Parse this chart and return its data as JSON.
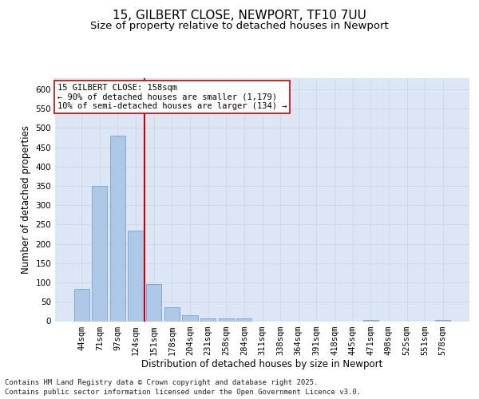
{
  "title_line1": "15, GILBERT CLOSE, NEWPORT, TF10 7UU",
  "title_line2": "Size of property relative to detached houses in Newport",
  "xlabel": "Distribution of detached houses by size in Newport",
  "ylabel": "Number of detached properties",
  "categories": [
    "44sqm",
    "71sqm",
    "97sqm",
    "124sqm",
    "151sqm",
    "178sqm",
    "204sqm",
    "231sqm",
    "258sqm",
    "284sqm",
    "311sqm",
    "338sqm",
    "364sqm",
    "391sqm",
    "418sqm",
    "445sqm",
    "471sqm",
    "498sqm",
    "525sqm",
    "551sqm",
    "578sqm"
  ],
  "values": [
    84,
    351,
    480,
    235,
    96,
    36,
    16,
    8,
    8,
    8,
    0,
    0,
    0,
    0,
    0,
    0,
    4,
    0,
    0,
    0,
    4
  ],
  "bar_color": "#adc8e6",
  "bar_edge_color": "#6699cc",
  "grid_color": "#cdd8ee",
  "background_color": "#dde6f5",
  "vline_x_index": 3.5,
  "vline_color": "#cc0000",
  "annotation_line1": "15 GILBERT CLOSE: 158sqm",
  "annotation_line2": "← 90% of detached houses are smaller (1,179)",
  "annotation_line3": "10% of semi-detached houses are larger (134) →",
  "ylim": [
    0,
    630
  ],
  "yticks": [
    0,
    50,
    100,
    150,
    200,
    250,
    300,
    350,
    400,
    450,
    500,
    550,
    600
  ],
  "footer_line1": "Contains HM Land Registry data © Crown copyright and database right 2025.",
  "footer_line2": "Contains public sector information licensed under the Open Government Licence v3.0.",
  "title_fontsize": 11,
  "subtitle_fontsize": 9.5,
  "axis_label_fontsize": 8.5,
  "tick_fontsize": 7.5,
  "annotation_fontsize": 7.5,
  "footer_fontsize": 6.5
}
